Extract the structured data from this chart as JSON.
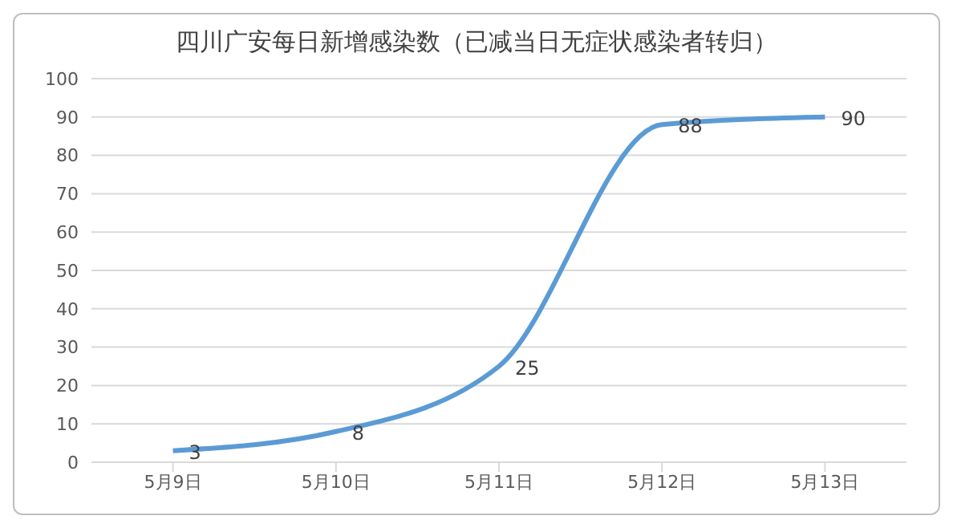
{
  "chart_data": {
    "type": "line",
    "title": "四川广安每日新增感染数（已减当日无症状感染者转归）",
    "categories": [
      "5月9日",
      "5月10日",
      "5月11日",
      "5月12日",
      "5月13日"
    ],
    "series": [
      {
        "color": "#5b9bd5",
        "values": [
          3,
          8,
          25,
          88,
          90
        ]
      }
    ],
    "ylim": [
      0,
      100
    ],
    "yticks": [
      0,
      10,
      20,
      30,
      40,
      50,
      60,
      70,
      80,
      90,
      100
    ],
    "grid": "y",
    "data_labels": true,
    "marker": "none",
    "line_style": "solid"
  }
}
